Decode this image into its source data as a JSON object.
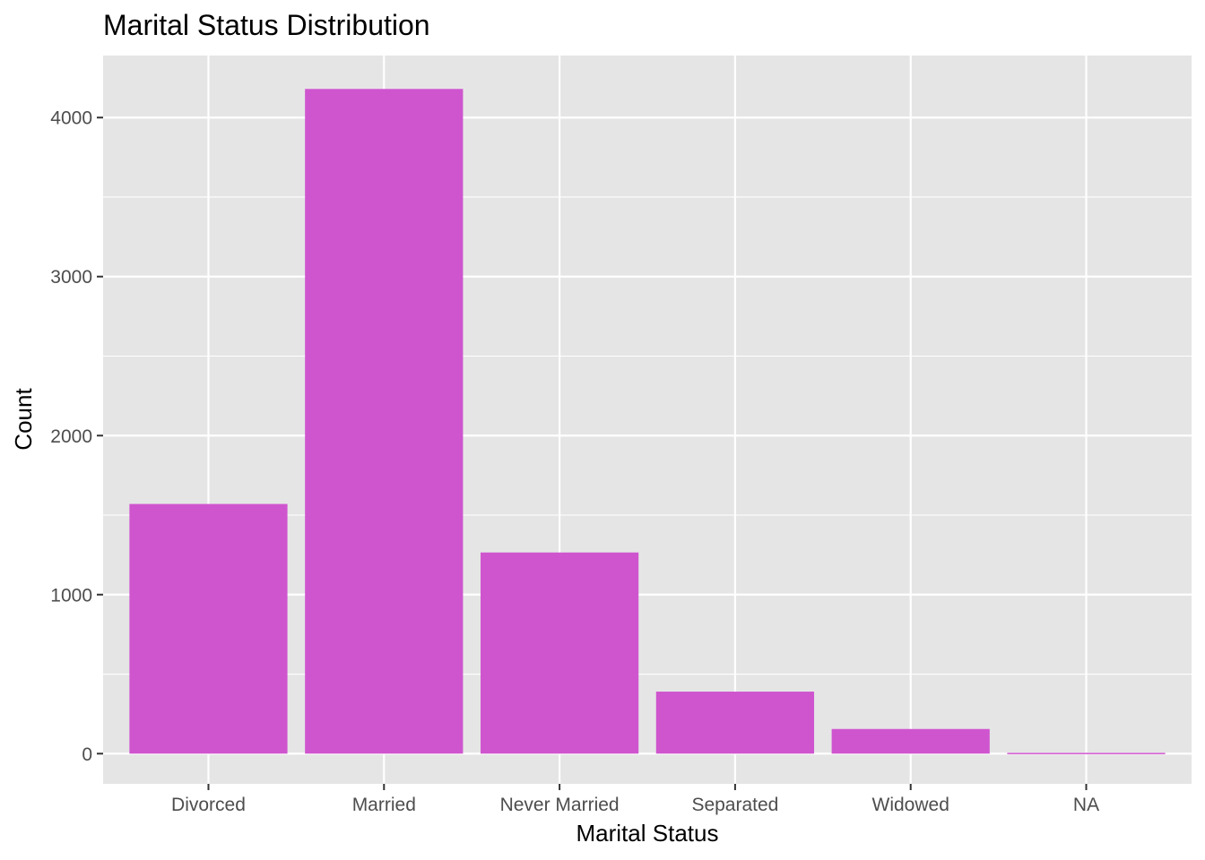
{
  "chart_data": {
    "type": "bar",
    "title": "Marital Status Distribution",
    "xlabel": "Marital Status",
    "ylabel": "Count",
    "categories": [
      "Divorced",
      "Married",
      "Never Married",
      "Separated",
      "Widowed",
      "NA"
    ],
    "values": [
      1570,
      4180,
      1265,
      390,
      155,
      5
    ],
    "ylim": [
      -190,
      4390
    ],
    "yticks": [
      0,
      1000,
      2000,
      3000,
      4000
    ],
    "yticklabels": [
      "0",
      "1000",
      "2000",
      "3000",
      "4000"
    ],
    "grid": true,
    "legend": "none",
    "colors": {
      "bar": "#CF55CF",
      "panel": "#E5E5E5",
      "grid": "#FFFFFF",
      "tick_text": "#4D4D4D",
      "tick": "#333333"
    }
  }
}
